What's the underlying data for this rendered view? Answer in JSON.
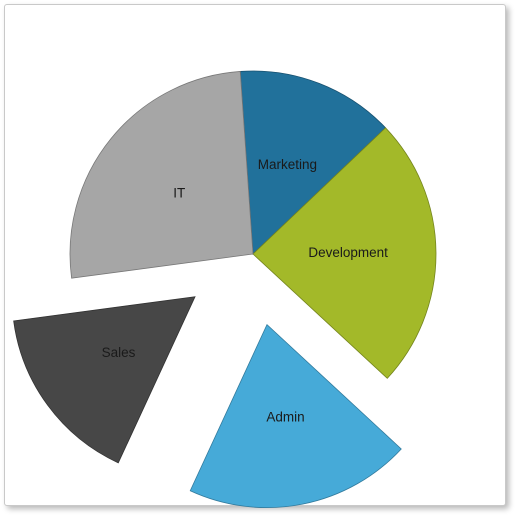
{
  "chart_data": {
    "type": "pie",
    "title": "",
    "slices": [
      {
        "label": "Marketing",
        "value": 14,
        "color": "#21719B",
        "exploded": false
      },
      {
        "label": "Development",
        "value": 24,
        "color": "#A3B929",
        "exploded": false
      },
      {
        "label": "Admin",
        "value": 20,
        "color": "#46AAD8",
        "exploded": true
      },
      {
        "label": "Sales",
        "value": 16,
        "color": "#474747",
        "exploded": true
      },
      {
        "label": "IT",
        "value": 26,
        "color": "#A6A6A6",
        "exploded": false
      }
    ],
    "start_angle_deg": -4,
    "direction": "clockwise",
    "legend": "none",
    "labels_inside": true
  }
}
